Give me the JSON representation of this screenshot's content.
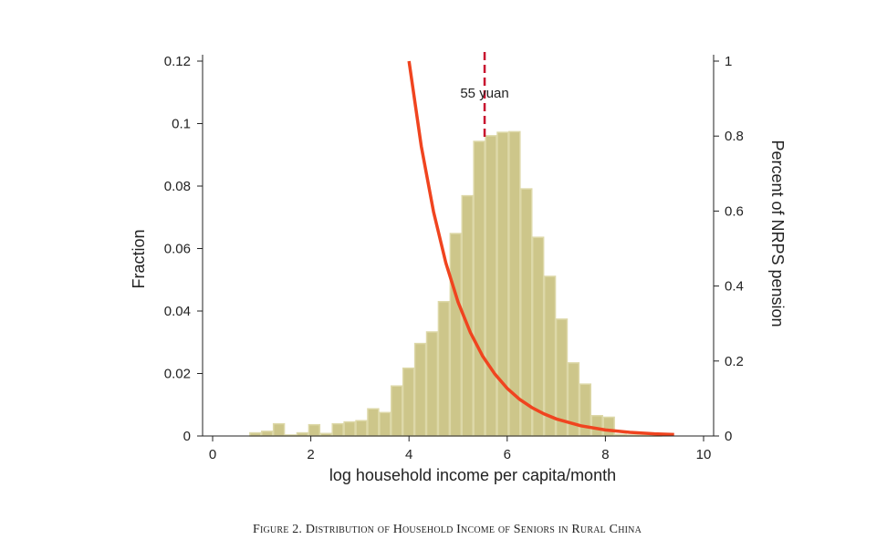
{
  "chart_data": {
    "type": "bar",
    "caption": "Figure 2. Distribution of Household Income of Seniors in Rural China",
    "xlabel": "log household income per capita/month",
    "ylabel": "Fraction",
    "ylabel_right": "Percent of NRPS pension",
    "xlim": [
      0,
      10
    ],
    "ylim": [
      0,
      0.12
    ],
    "ylim_right": [
      0,
      1
    ],
    "grid": false,
    "x_ticks": [
      0,
      2,
      4,
      6,
      8,
      10
    ],
    "x_tick_labels": [
      "0",
      "2",
      "4",
      "6",
      "8",
      "10"
    ],
    "y_ticks": [
      0,
      0.02,
      0.04,
      0.06,
      0.08,
      0.1,
      0.12
    ],
    "y_tick_labels": [
      "0",
      "0.02",
      "0.04",
      "0.06",
      "0.08",
      "0.1",
      "0.12"
    ],
    "y_right_ticks": [
      0,
      0.2,
      0.4,
      0.6,
      0.8,
      1
    ],
    "y_right_tick_labels": [
      "0",
      "0.2",
      "0.4",
      "0.6",
      "0.8",
      "1"
    ],
    "histogram": {
      "bin_start": 0.75,
      "bin_width": 0.24,
      "values": [
        0.001,
        0.0015,
        0.0039,
        0.0003,
        0.001,
        0.0036,
        0.0008,
        0.0039,
        0.0045,
        0.0049,
        0.0087,
        0.0075,
        0.016,
        0.0217,
        0.0296,
        0.0333,
        0.043,
        0.0648,
        0.0769,
        0.0943,
        0.0961,
        0.0972,
        0.0974,
        0.0791,
        0.0636,
        0.0511,
        0.0374,
        0.0234,
        0.0166,
        0.0065,
        0.006,
        0.0005,
        0.0003,
        0.0002,
        0.0002
      ],
      "color": "#cdc68a",
      "edge_color": "#ddd8a8"
    },
    "curve": {
      "name": "Percent of NRPS pension",
      "axis": "right",
      "color": "#f0441f",
      "x": [
        4,
        4.25,
        4.5,
        4.75,
        5,
        5.25,
        5.5,
        5.75,
        6,
        6.25,
        6.5,
        6.75,
        7,
        7.5,
        8,
        8.5,
        9,
        9.4
      ],
      "y": [
        1,
        0.773,
        0.598,
        0.462,
        0.357,
        0.276,
        0.213,
        0.165,
        0.127,
        0.098,
        0.076,
        0.059,
        0.0455,
        0.0272,
        0.0162,
        0.0097,
        0.0058,
        0.0039
      ]
    },
    "reference_line": {
      "x": 5.54,
      "label": "55 yuan",
      "color": "#c8102e"
    }
  }
}
